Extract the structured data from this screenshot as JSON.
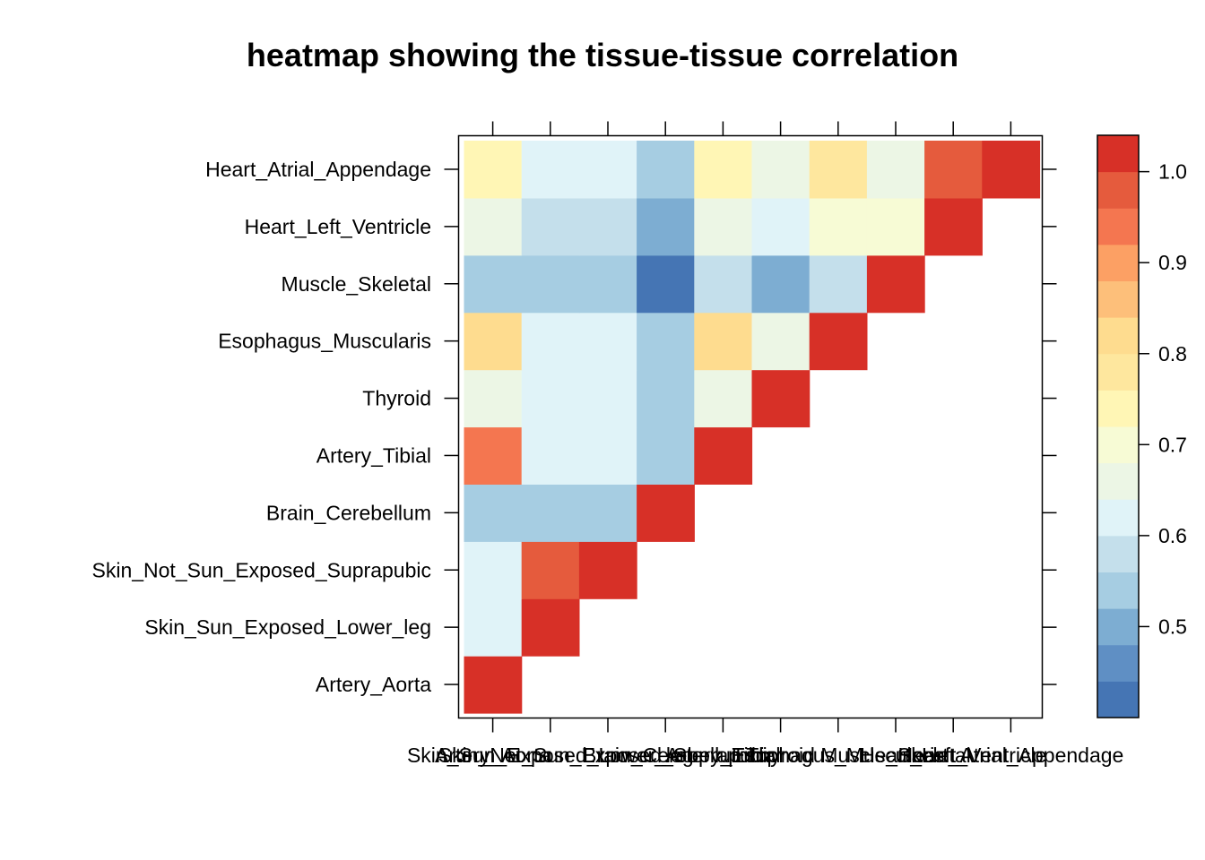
{
  "chart_data": {
    "type": "heatmap",
    "title": "heatmap showing the tissue-tissue correlation",
    "xlabel": "",
    "ylabel": "",
    "categories": [
      "Artery_Aorta",
      "Skin_Sun_Exposed_Lower_leg",
      "Skin_Not_Sun_Exposed_Suprapubic",
      "Brain_Cerebellum",
      "Artery_Tibial",
      "Thyroid",
      "Esophagus_Muscularis",
      "Muscle_Skeletal",
      "Heart_Left_Ventricle",
      "Heart_Atrial_Appendage"
    ],
    "row_order_bottom_to_top": [
      "Artery_Aorta",
      "Skin_Sun_Exposed_Lower_leg",
      "Skin_Not_Sun_Exposed_Suprapubic",
      "Brain_Cerebellum",
      "Artery_Tibial",
      "Thyroid",
      "Esophagus_Muscularis",
      "Muscle_Skeletal",
      "Heart_Left_Ventricle",
      "Heart_Atrial_Appendage"
    ],
    "matrix_lower_triangle": [
      [
        1.02
      ],
      [
        0.63,
        1.02
      ],
      [
        0.63,
        0.98,
        1.02
      ],
      [
        0.55,
        0.52,
        0.52,
        1.02
      ],
      [
        0.94,
        0.63,
        0.63,
        0.52,
        1.02
      ],
      [
        0.67,
        0.63,
        0.63,
        0.55,
        0.67,
        1.02
      ],
      [
        0.81,
        0.63,
        0.63,
        0.55,
        0.81,
        0.67,
        1.02
      ],
      [
        0.55,
        0.55,
        0.55,
        0.42,
        0.59,
        0.51,
        0.59,
        1.02
      ],
      [
        0.67,
        0.59,
        0.59,
        0.51,
        0.67,
        0.63,
        0.71,
        0.71,
        1.02
      ],
      [
        0.75,
        0.63,
        0.63,
        0.55,
        0.75,
        0.67,
        0.79,
        0.67,
        0.98,
        1.02
      ]
    ],
    "zlim": [
      0.4,
      1.04
    ],
    "colorbar": {
      "breaks": [
        0.4,
        0.44,
        0.48,
        0.52,
        0.56,
        0.6,
        0.64,
        0.68,
        0.72,
        0.76,
        0.8,
        0.84,
        0.88,
        0.92,
        0.96,
        1.0,
        1.04
      ],
      "colors": [
        "#4575b4",
        "#5f8fc4",
        "#7dadd2",
        "#a6cde2",
        "#c4dfeb",
        "#e0f3f8",
        "#ecf6e5",
        "#f7fbd5",
        "#fff6b5",
        "#fee79e",
        "#fedc8f",
        "#fdbf7a",
        "#fca064",
        "#f47650",
        "#e55b3d",
        "#d73027"
      ],
      "tick_values": [
        0.5,
        0.6,
        0.7,
        0.8,
        0.9,
        1.0
      ],
      "tick_labels": [
        "0.5",
        "0.6",
        "0.7",
        "0.8",
        "0.9",
        "1.0"
      ]
    },
    "grid": false,
    "legend_position": "right"
  }
}
